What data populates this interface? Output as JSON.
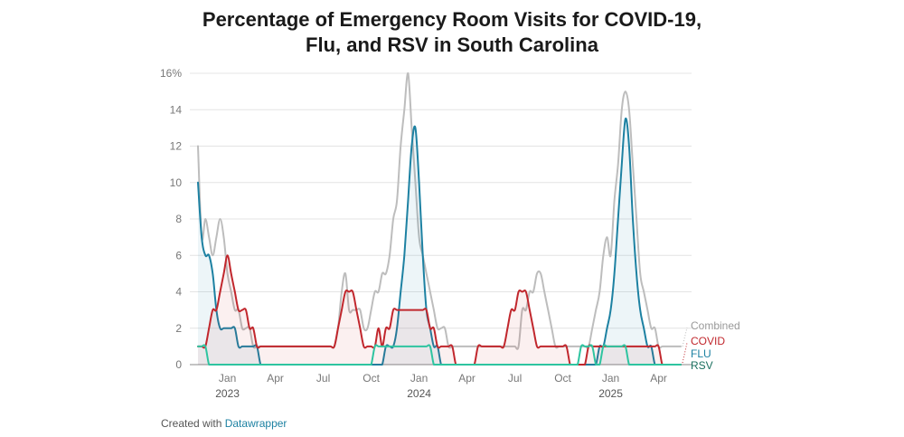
{
  "title_line1": "Percentage of Emergency Room Visits for COVID-19,",
  "title_line2": "Flu, and RSV in South Carolina",
  "footer": {
    "prefix": "Created with",
    "link": "Datawrapper"
  },
  "chart_data": {
    "type": "line",
    "title": "Percentage of Emergency Room Visits for COVID-19, Flu, and RSV in South Carolina",
    "x_unit": "week (2022-11 to 2025-05)",
    "y_ticks": [
      "16%",
      "14",
      "12",
      "10",
      "8",
      "6",
      "4",
      "2",
      "0"
    ],
    "ylim": [
      0,
      16
    ],
    "grid": true,
    "x_ticks": [
      {
        "label": "Jan",
        "year": "2023",
        "week": 8
      },
      {
        "label": "Apr",
        "week": 21
      },
      {
        "label": "Jul",
        "week": 34
      },
      {
        "label": "Oct",
        "week": 47
      },
      {
        "label": "Jan",
        "year": "2024",
        "week": 60
      },
      {
        "label": "Apr",
        "week": 73
      },
      {
        "label": "Jul",
        "week": 86
      },
      {
        "label": "Oct",
        "week": 99
      },
      {
        "label": "Jan",
        "year": "2025",
        "week": 112
      },
      {
        "label": "Apr",
        "week": 125
      }
    ],
    "series": [
      {
        "name": "Combined",
        "color": "#bdbdbd",
        "fill": "",
        "values": [
          12,
          7,
          8,
          7,
          6,
          7,
          8,
          7,
          5,
          4,
          3,
          3,
          2,
          2,
          2,
          1,
          1,
          1,
          1,
          1,
          1,
          1,
          1,
          1,
          1,
          1,
          1,
          1,
          1,
          1,
          1,
          1,
          1,
          1,
          1,
          1,
          1,
          1,
          2,
          4,
          5,
          3,
          3,
          3,
          3,
          2,
          2,
          3,
          4,
          4,
          5,
          5,
          6,
          8,
          9,
          12,
          14,
          16,
          13,
          10,
          7,
          6,
          5,
          4,
          3,
          2,
          2,
          2,
          1,
          1,
          1,
          1,
          1,
          1,
          1,
          1,
          1,
          1,
          1,
          1,
          1,
          1,
          1,
          1,
          1,
          1,
          1,
          1,
          3,
          3,
          4,
          4,
          5,
          5,
          4,
          3,
          2,
          1,
          1,
          1,
          1,
          1,
          1,
          1,
          1,
          1,
          1,
          2,
          3,
          4,
          6,
          7,
          6,
          9,
          11,
          14,
          15,
          14,
          11,
          8,
          5,
          4,
          3,
          2,
          2,
          1,
          1,
          1,
          1,
          1,
          1,
          1
        ]
      },
      {
        "name": "FLU",
        "color": "#1d81a2",
        "fill": "rgba(29,129,162,0.08)",
        "values": [
          10,
          7,
          6,
          6,
          5,
          3,
          2,
          2,
          2,
          2,
          2,
          1,
          1,
          1,
          1,
          1,
          1,
          0,
          0,
          0,
          0,
          0,
          0,
          0,
          0,
          0,
          0,
          0,
          0,
          0,
          0,
          0,
          0,
          0,
          0,
          0,
          0,
          0,
          0,
          0,
          0,
          0,
          0,
          0,
          0,
          0,
          0,
          0,
          0,
          0,
          0,
          1,
          1,
          1,
          2,
          4,
          6,
          9,
          12,
          13,
          10,
          6,
          3,
          2,
          1,
          1,
          0,
          0,
          0,
          0,
          0,
          0,
          0,
          0,
          0,
          0,
          0,
          0,
          0,
          0,
          0,
          0,
          0,
          0,
          0,
          0,
          0,
          0,
          0,
          0,
          0,
          0,
          0,
          0,
          0,
          0,
          0,
          0,
          0,
          0,
          0,
          0,
          0,
          0,
          0,
          0,
          0,
          0,
          0,
          1,
          1,
          2,
          3,
          5,
          8,
          11,
          13.5,
          12,
          8,
          5,
          3,
          2,
          1,
          1,
          0,
          0,
          0,
          0,
          0,
          0,
          0,
          0
        ]
      },
      {
        "name": "COVID",
        "color": "#c1272d",
        "fill": "rgba(193,39,45,0.07)",
        "values": [
          1,
          1,
          1,
          2,
          3,
          3,
          4,
          5,
          6,
          5,
          4,
          3,
          3,
          3,
          2,
          2,
          1,
          1,
          1,
          1,
          1,
          1,
          1,
          1,
          1,
          1,
          1,
          1,
          1,
          1,
          1,
          1,
          1,
          1,
          1,
          1,
          1,
          1,
          2,
          3,
          4,
          4,
          4,
          3,
          2,
          1,
          1,
          1,
          1,
          2,
          1,
          2,
          2,
          3,
          3,
          3,
          3,
          3,
          3,
          3,
          3,
          3,
          3,
          2,
          2,
          1,
          1,
          1,
          1,
          1,
          0,
          0,
          0,
          0,
          0,
          0,
          1,
          1,
          1,
          1,
          1,
          1,
          1,
          1,
          2,
          3,
          3,
          4,
          4,
          4,
          3,
          2,
          1,
          1,
          1,
          1,
          1,
          1,
          1,
          1,
          1,
          0,
          0,
          0,
          0,
          0,
          1,
          1,
          1,
          1,
          1,
          1,
          1,
          1,
          1,
          1,
          1,
          1,
          1,
          1,
          1,
          1,
          1,
          1,
          1,
          1,
          0,
          0,
          0,
          0,
          0,
          0
        ]
      },
      {
        "name": "RSV",
        "color": "#2ec4a0",
        "fill": "",
        "values": [
          1,
          1,
          1,
          0,
          0,
          0,
          0,
          0,
          0,
          0,
          0,
          0,
          0,
          0,
          0,
          0,
          0,
          0,
          0,
          0,
          0,
          0,
          0,
          0,
          0,
          0,
          0,
          0,
          0,
          0,
          0,
          0,
          0,
          0,
          0,
          0,
          0,
          0,
          0,
          0,
          0,
          0,
          0,
          0,
          0,
          0,
          0,
          0,
          1,
          1,
          1,
          1,
          1,
          1,
          1,
          1,
          1,
          1,
          1,
          1,
          1,
          1,
          1,
          1,
          0,
          0,
          0,
          0,
          0,
          0,
          0,
          0,
          0,
          0,
          0,
          0,
          0,
          0,
          0,
          0,
          0,
          0,
          0,
          0,
          0,
          0,
          0,
          0,
          0,
          0,
          0,
          0,
          0,
          0,
          0,
          0,
          0,
          0,
          0,
          0,
          0,
          0,
          0,
          0,
          1,
          1,
          1,
          1,
          0,
          0,
          1,
          1,
          1,
          1,
          1,
          1,
          1,
          0,
          0,
          0,
          0,
          0,
          0,
          0,
          0,
          0,
          0,
          0,
          0,
          0,
          0,
          0
        ]
      }
    ],
    "end_labels": [
      {
        "name": "Combined",
        "color": "#999999"
      },
      {
        "name": "COVID",
        "color": "#c1272d"
      },
      {
        "name": "FLU",
        "color": "#1d81a2"
      },
      {
        "name": "RSV",
        "color": "#1a6f5e"
      }
    ]
  }
}
